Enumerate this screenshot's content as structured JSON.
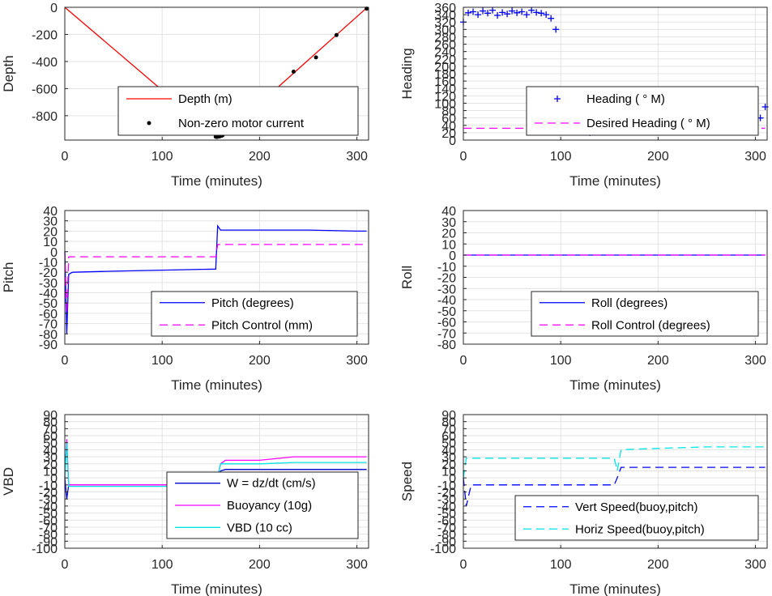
{
  "chart_data": [
    {
      "type": "line",
      "xlabel": "Time (minutes)",
      "ylabel": "Depth",
      "xlim": [
        0,
        312
      ],
      "ylim": [
        -980,
        0
      ],
      "xticks": [
        0,
        100,
        200,
        300
      ],
      "yticks": [
        0,
        -200,
        -400,
        -600,
        -800
      ],
      "grid": true,
      "legend_position": "bottom-right",
      "series": [
        {
          "name": "Depth (m)",
          "style": "line",
          "color": "#ff0000",
          "x": [
            0,
            156,
            162,
            310
          ],
          "y": [
            0,
            -955,
            -955,
            -5
          ]
        },
        {
          "name": "Non-zero motor current",
          "style": "dots",
          "color": "#000000",
          "x": [
            155,
            156,
            157,
            158,
            159,
            160,
            161,
            162,
            235,
            258,
            279,
            310
          ],
          "y": [
            -955,
            -957,
            -955,
            -953,
            -952,
            -950,
            -948,
            -945,
            -475,
            -370,
            -205,
            -10
          ]
        }
      ]
    },
    {
      "type": "scatter",
      "xlabel": "Time (minutes)",
      "ylabel": "Heading",
      "xlim": [
        0,
        312
      ],
      "ylim": [
        0,
        360
      ],
      "xticks": [
        0,
        100,
        200,
        300
      ],
      "yticks": [
        0,
        20,
        40,
        60,
        80,
        100,
        120,
        140,
        160,
        180,
        200,
        220,
        240,
        260,
        280,
        300,
        320,
        340,
        360
      ],
      "grid": true,
      "legend_position": "center-right",
      "series": [
        {
          "name": "Heading ( ° M)",
          "style": "markers",
          "color": "#0000ff",
          "x": [
            0,
            5,
            10,
            15,
            20,
            25,
            30,
            35,
            40,
            45,
            50,
            55,
            60,
            65,
            70,
            75,
            80,
            85,
            90,
            95,
            100,
            105,
            110,
            115,
            120,
            125,
            130,
            135,
            140,
            145,
            150,
            155,
            160,
            165,
            170,
            175,
            180,
            185,
            190,
            195,
            200,
            205,
            210,
            215,
            220,
            225,
            230,
            235,
            240,
            245,
            250,
            255,
            260,
            265,
            270,
            275,
            280,
            285,
            290,
            295,
            300,
            305,
            310
          ],
          "y": [
            320,
            345,
            348,
            340,
            350,
            344,
            352,
            338,
            346,
            342,
            350,
            345,
            348,
            340,
            352,
            346,
            344,
            340,
            330,
            300,
            60,
            90,
            110,
            40,
            70,
            120,
            20,
            80,
            100,
            30,
            60,
            130,
            40,
            90,
            70,
            120,
            50,
            80,
            110,
            30,
            90,
            60,
            120,
            40,
            100,
            70,
            130,
            50,
            80,
            110,
            30,
            90,
            60,
            120,
            40,
            100,
            70,
            130,
            50,
            80,
            110,
            60,
            90
          ]
        },
        {
          "name": "Desired Heading ( ° M)",
          "style": "dashed",
          "color": "#ff00ff",
          "x": [
            0,
            310
          ],
          "y": [
            32,
            32
          ]
        }
      ]
    },
    {
      "type": "line",
      "xlabel": "Time (minutes)",
      "ylabel": "Pitch",
      "xlim": [
        0,
        312
      ],
      "ylim": [
        -90,
        40
      ],
      "xticks": [
        0,
        100,
        200,
        300
      ],
      "yticks": [
        40,
        30,
        20,
        10,
        0,
        -10,
        -20,
        -30,
        -40,
        -50,
        -60,
        -70,
        -80,
        -90
      ],
      "grid": true,
      "legend_position": "bottom-right",
      "series": [
        {
          "name": "Pitch (degrees)",
          "style": "solid",
          "color": "#0000ff",
          "x": [
            0,
            2,
            4,
            8,
            50,
            100,
            155,
            157,
            160,
            200,
            250,
            300,
            310
          ],
          "y": [
            0,
            -80,
            -22,
            -20,
            -19,
            -18,
            -17,
            25,
            21,
            21,
            21,
            20,
            20
          ]
        },
        {
          "name": "Pitch Control (mm)",
          "style": "dashed",
          "color": "#ff00ff",
          "x": [
            0,
            2,
            4,
            8,
            50,
            100,
            155,
            157,
            160,
            200,
            250,
            300,
            310
          ],
          "y": [
            0,
            -60,
            -5,
            -5,
            -5,
            -5,
            -5,
            7,
            7,
            7,
            7,
            7,
            7
          ]
        }
      ]
    },
    {
      "type": "line",
      "xlabel": "Time (minutes)",
      "ylabel": "Roll",
      "xlim": [
        0,
        312
      ],
      "ylim": [
        -80,
        40
      ],
      "xticks": [
        0,
        100,
        200,
        300
      ],
      "yticks": [
        40,
        30,
        20,
        10,
        0,
        -10,
        -20,
        -30,
        -40,
        -50,
        -60,
        -70,
        -80
      ],
      "grid": true,
      "legend_position": "bottom-right",
      "series": [
        {
          "name": "Roll (degrees)",
          "style": "solid",
          "color": "#0000ff",
          "x": [
            0,
            310
          ],
          "y": [
            0,
            0
          ]
        },
        {
          "name": "Roll Control (degrees)",
          "style": "dashed",
          "color": "#ff00ff",
          "x": [
            0,
            310
          ],
          "y": [
            0,
            0
          ]
        }
      ]
    },
    {
      "type": "line",
      "xlabel": "Time (minutes)",
      "ylabel": "VBD",
      "xlim": [
        0,
        312
      ],
      "ylim": [
        -100,
        90
      ],
      "xticks": [
        0,
        100,
        200,
        300
      ],
      "yticks": [
        90,
        80,
        70,
        60,
        50,
        40,
        30,
        20,
        10,
        0,
        -10,
        -20,
        -30,
        -40,
        -50,
        -60,
        -70,
        -80,
        -90,
        -100
      ],
      "grid": true,
      "legend_position": "bottom-right",
      "series": [
        {
          "name": "W = dz/dt (cm/s)",
          "style": "solid",
          "color": "#0000cc",
          "x": [
            0,
            2,
            4,
            8,
            50,
            100,
            155,
            160,
            165,
            200,
            250,
            310
          ],
          "y": [
            0,
            -30,
            -10,
            -10,
            -10,
            -10,
            -10,
            10,
            12,
            12,
            12,
            12
          ]
        },
        {
          "name": "Buoyancy (10g)",
          "style": "solid",
          "color": "#ff00ff",
          "x": [
            0,
            2,
            4,
            8,
            50,
            100,
            155,
            160,
            165,
            200,
            235,
            310
          ],
          "y": [
            0,
            55,
            -10,
            -10,
            -10,
            -10,
            -10,
            20,
            25,
            25,
            30,
            30
          ]
        },
        {
          "name": "VBD (10 cc)",
          "style": "solid",
          "color": "#00e5e5",
          "x": [
            0,
            2,
            4,
            8,
            50,
            100,
            155,
            160,
            165,
            200,
            235,
            310
          ],
          "y": [
            0,
            50,
            -12,
            -12,
            -12,
            -12,
            -12,
            20,
            20,
            20,
            22,
            22
          ]
        }
      ]
    },
    {
      "type": "line",
      "xlabel": "Time (minutes)",
      "ylabel": "Speed",
      "xlim": [
        0,
        312
      ],
      "ylim": [
        -100,
        90
      ],
      "xticks": [
        0,
        100,
        200,
        300
      ],
      "yticks": [
        90,
        80,
        70,
        60,
        50,
        40,
        30,
        20,
        10,
        0,
        -10,
        -20,
        -30,
        -40,
        -50,
        -60,
        -70,
        -80,
        -90,
        -100
      ],
      "grid": true,
      "legend_position": "bottom-right",
      "series": [
        {
          "name": "Vert Speed(buoy,pitch)",
          "style": "dashed",
          "color": "#0000ff",
          "x": [
            0,
            3,
            8,
            50,
            100,
            155,
            158,
            162,
            200,
            250,
            310
          ],
          "y": [
            0,
            -40,
            -10,
            -10,
            -10,
            -10,
            0,
            15,
            15,
            15,
            15
          ]
        },
        {
          "name": "Horiz Speed(buoy,pitch)",
          "style": "dashed",
          "color": "#00e5e5",
          "x": [
            0,
            3,
            8,
            50,
            100,
            155,
            158,
            162,
            200,
            250,
            310
          ],
          "y": [
            0,
            28,
            28,
            28,
            28,
            28,
            10,
            40,
            42,
            44,
            44
          ]
        }
      ]
    }
  ]
}
